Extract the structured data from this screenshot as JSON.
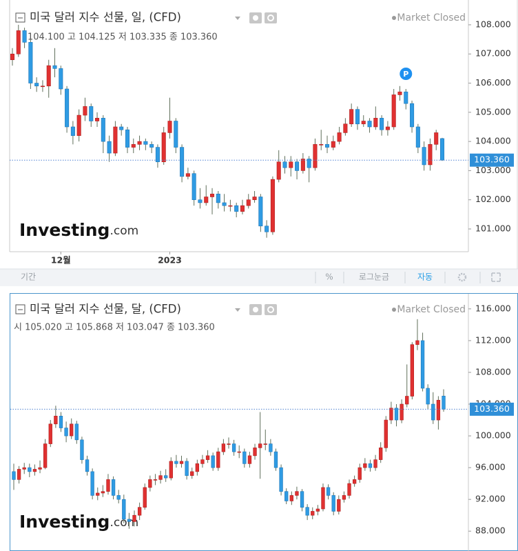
{
  "chart_data": [
    {
      "type": "candlestick",
      "title": "미국 달러 지수 선물, 일, (CFD)",
      "market_status": "Market Closed",
      "ohlc_text": "104.100 고 104.125 저 103.335 종 103.360",
      "marker_label": "P",
      "logo": "Investing",
      "logo_suffix": ".com",
      "up_color": "#e03131",
      "down_color": "#2f9be3",
      "wick_color": "#5f6e5a",
      "ylim": [
        100.22,
        108.85
      ],
      "yticks": [
        {
          "value": 101,
          "label": "101.000"
        },
        {
          "value": 102,
          "label": "102.000"
        },
        {
          "value": 103,
          "label": "103.000"
        },
        {
          "value": 104,
          "label": "104.000"
        },
        {
          "value": 105,
          "label": "105.000"
        },
        {
          "value": 106,
          "label": "106.000"
        },
        {
          "value": 107,
          "label": "107.000"
        },
        {
          "value": 108,
          "label": "108.000"
        }
      ],
      "xticks": [
        {
          "value": 8,
          "label": "12월"
        },
        {
          "value": 26,
          "label": "2023"
        }
      ],
      "last_price": {
        "value": 103.36,
        "label": "103.360"
      },
      "ohlc": [
        [
          106.8,
          107.2,
          106.6,
          107.0
        ],
        [
          107.0,
          108.0,
          106.9,
          107.8
        ],
        [
          107.8,
          107.9,
          107.2,
          107.4
        ],
        [
          107.4,
          107.5,
          105.8,
          106.0
        ],
        [
          106.0,
          106.2,
          105.7,
          105.9
        ],
        [
          105.9,
          106.1,
          105.7,
          105.9
        ],
        [
          105.9,
          106.8,
          105.5,
          106.6
        ],
        [
          106.6,
          107.2,
          106.2,
          106.5
        ],
        [
          106.5,
          106.6,
          105.6,
          105.8
        ],
        [
          105.8,
          105.9,
          104.3,
          104.5
        ],
        [
          104.5,
          104.7,
          103.9,
          104.2
        ],
        [
          104.2,
          105.1,
          104.0,
          104.9
        ],
        [
          104.9,
          105.5,
          104.7,
          105.2
        ],
        [
          105.2,
          105.3,
          104.5,
          104.7
        ],
        [
          104.7,
          105.0,
          104.5,
          104.8
        ],
        [
          104.8,
          104.9,
          103.6,
          104.0
        ],
        [
          104.0,
          104.2,
          103.3,
          103.6
        ],
        [
          103.6,
          104.7,
          103.5,
          104.5
        ],
        [
          104.5,
          104.6,
          104.2,
          104.4
        ],
        [
          104.4,
          104.5,
          103.6,
          103.8
        ],
        [
          103.8,
          104.1,
          103.6,
          103.9
        ],
        [
          103.9,
          104.2,
          103.7,
          104.0
        ],
        [
          104.0,
          104.1,
          103.7,
          103.9
        ],
        [
          103.9,
          104.0,
          103.6,
          103.8
        ],
        [
          103.8,
          103.9,
          103.1,
          103.3
        ],
        [
          103.3,
          104.5,
          103.2,
          104.3
        ],
        [
          104.3,
          105.5,
          104.1,
          104.7
        ],
        [
          104.7,
          104.8,
          103.6,
          103.8
        ],
        [
          103.8,
          103.9,
          102.6,
          102.8
        ],
        [
          102.8,
          103.1,
          102.7,
          102.9
        ],
        [
          102.9,
          103.0,
          101.8,
          102.0
        ],
        [
          102.0,
          102.4,
          101.7,
          101.9
        ],
        [
          101.9,
          102.5,
          101.8,
          102.1
        ],
        [
          102.1,
          102.4,
          101.5,
          102.2
        ],
        [
          102.2,
          102.3,
          101.7,
          101.9
        ],
        [
          101.9,
          102.2,
          101.6,
          101.8
        ],
        [
          101.8,
          102.0,
          101.6,
          101.8
        ],
        [
          101.8,
          101.9,
          101.4,
          101.6
        ],
        [
          101.6,
          102.0,
          101.5,
          101.8
        ],
        [
          101.8,
          102.2,
          101.7,
          102.0
        ],
        [
          102.0,
          102.3,
          101.9,
          102.1
        ],
        [
          102.1,
          102.2,
          100.9,
          101.1
        ],
        [
          101.1,
          101.3,
          100.7,
          100.9
        ],
        [
          100.9,
          102.8,
          100.8,
          102.7
        ],
        [
          102.7,
          103.7,
          102.6,
          103.3
        ],
        [
          103.3,
          103.5,
          102.9,
          103.1
        ],
        [
          103.1,
          103.5,
          102.8,
          103.3
        ],
        [
          103.3,
          103.4,
          102.7,
          103.0
        ],
        [
          103.0,
          103.6,
          102.9,
          103.4
        ],
        [
          103.4,
          103.5,
          102.6,
          103.1
        ],
        [
          103.1,
          104.1,
          103.0,
          103.9
        ],
        [
          103.9,
          104.4,
          103.7,
          103.9
        ],
        [
          103.9,
          104.2,
          103.6,
          103.8
        ],
        [
          103.8,
          104.2,
          103.7,
          104.0
        ],
        [
          104.0,
          104.5,
          103.9,
          104.3
        ],
        [
          104.3,
          104.8,
          104.2,
          104.6
        ],
        [
          104.6,
          105.3,
          104.5,
          105.1
        ],
        [
          105.1,
          105.2,
          104.4,
          104.6
        ],
        [
          104.6,
          104.9,
          104.5,
          104.7
        ],
        [
          104.7,
          104.8,
          104.3,
          104.5
        ],
        [
          104.5,
          105.2,
          104.4,
          104.8
        ],
        [
          104.8,
          104.9,
          104.2,
          104.4
        ],
        [
          104.4,
          104.7,
          104.2,
          104.5
        ],
        [
          104.5,
          105.8,
          104.4,
          105.6
        ],
        [
          105.6,
          105.9,
          105.4,
          105.7
        ],
        [
          105.7,
          105.8,
          105.1,
          105.3
        ],
        [
          105.3,
          105.4,
          104.3,
          104.5
        ],
        [
          104.5,
          104.6,
          103.6,
          103.8
        ],
        [
          103.8,
          104.0,
          103.0,
          103.2
        ],
        [
          103.2,
          104.1,
          103.0,
          103.9
        ],
        [
          103.9,
          104.4,
          103.7,
          104.3
        ],
        [
          104.1,
          104.125,
          103.335,
          103.36
        ]
      ]
    },
    {
      "type": "candlestick",
      "title": "미국 달러 지수 선물, 달, (CFD)",
      "market_status": "Market Closed",
      "ohlc_text": "시 105.020 고 105.868 저 103.047 종 103.360",
      "logo": "Investing",
      "logo_suffix": ".com",
      "up_color": "#e03131",
      "down_color": "#2f9be3",
      "wick_color": "#5f6e5a",
      "ylim": [
        85.5,
        117.9
      ],
      "yticks": [
        {
          "value": 88,
          "label": "88.000"
        },
        {
          "value": 92,
          "label": "92.000"
        },
        {
          "value": 96,
          "label": "96.000"
        },
        {
          "value": 100,
          "label": "100.000"
        },
        {
          "value": 104,
          "label": "104.000"
        },
        {
          "value": 108,
          "label": "108.000"
        },
        {
          "value": 112,
          "label": "112.000"
        },
        {
          "value": 116,
          "label": "116.000"
        }
      ],
      "last_price": {
        "value": 103.36,
        "label": "103.360"
      },
      "ohlc": [
        [
          95.5,
          96.5,
          93.2,
          94.5
        ],
        [
          94.5,
          96.2,
          94.0,
          95.8
        ],
        [
          95.8,
          96.6,
          95.2,
          96.0
        ],
        [
          96.0,
          96.5,
          94.8,
          95.5
        ],
        [
          95.5,
          96.4,
          95.0,
          95.8
        ],
        [
          95.8,
          96.9,
          95.3,
          96.0
        ],
        [
          96.0,
          99.6,
          95.8,
          99.0
        ],
        [
          99.0,
          102.0,
          98.6,
          101.5
        ],
        [
          101.5,
          103.8,
          101.0,
          102.5
        ],
        [
          102.5,
          103.0,
          100.5,
          101.0
        ],
        [
          101.0,
          101.8,
          99.2,
          100.0
        ],
        [
          100.0,
          102.2,
          99.6,
          101.5
        ],
        [
          101.5,
          101.9,
          99.0,
          99.5
        ],
        [
          99.5,
          99.9,
          96.5,
          97.0
        ],
        [
          97.0,
          97.5,
          95.0,
          95.5
        ],
        [
          95.5,
          95.9,
          92.0,
          92.5
        ],
        [
          92.5,
          93.5,
          91.9,
          92.8
        ],
        [
          92.8,
          93.8,
          92.3,
          93.0
        ],
        [
          93.0,
          95.2,
          92.6,
          94.5
        ],
        [
          94.5,
          94.9,
          92.0,
          92.5
        ],
        [
          92.5,
          93.2,
          91.5,
          92.0
        ],
        [
          92.0,
          92.6,
          89.0,
          89.5
        ],
        [
          89.5,
          90.3,
          88.3,
          89.2
        ],
        [
          89.2,
          90.6,
          88.6,
          90.0
        ],
        [
          90.0,
          91.6,
          89.4,
          91.0
        ],
        [
          91.0,
          94.0,
          90.7,
          93.5
        ],
        [
          93.5,
          95.0,
          93.0,
          94.5
        ],
        [
          94.5,
          95.2,
          93.8,
          94.5
        ],
        [
          94.5,
          95.6,
          94.0,
          95.0
        ],
        [
          95.0,
          95.8,
          94.2,
          94.7
        ],
        [
          94.7,
          97.3,
          94.4,
          96.8
        ],
        [
          96.8,
          97.6,
          96.0,
          96.5
        ],
        [
          96.5,
          97.5,
          96.0,
          96.8
        ],
        [
          96.8,
          97.2,
          94.5,
          95.0
        ],
        [
          95.0,
          96.0,
          94.6,
          95.5
        ],
        [
          95.5,
          97.0,
          95.0,
          96.5
        ],
        [
          96.5,
          97.6,
          96.0,
          97.0
        ],
        [
          97.0,
          98.2,
          96.6,
          97.5
        ],
        [
          97.5,
          97.9,
          95.6,
          96.0
        ],
        [
          96.0,
          98.5,
          95.6,
          98.0
        ],
        [
          98.0,
          99.6,
          97.6,
          99.0
        ],
        [
          99.0,
          99.8,
          98.4,
          99.0
        ],
        [
          99.0,
          99.5,
          97.5,
          98.0
        ],
        [
          98.0,
          98.8,
          97.2,
          98.0
        ],
        [
          98.0,
          98.4,
          96.0,
          96.5
        ],
        [
          96.5,
          98.0,
          96.0,
          97.5
        ],
        [
          97.5,
          99.0,
          97.0,
          98.5
        ],
        [
          98.5,
          103.0,
          94.6,
          99.0
        ],
        [
          99.0,
          100.8,
          98.2,
          99.0
        ],
        [
          99.0,
          99.6,
          97.5,
          98.0
        ],
        [
          98.0,
          98.4,
          95.6,
          96.0
        ],
        [
          96.0,
          96.4,
          92.5,
          93.0
        ],
        [
          93.0,
          93.4,
          91.4,
          91.8
        ],
        [
          91.8,
          93.0,
          91.3,
          92.5
        ],
        [
          92.5,
          93.6,
          92.0,
          93.0
        ],
        [
          93.0,
          93.3,
          90.5,
          91.0
        ],
        [
          91.0,
          91.4,
          89.4,
          90.0
        ],
        [
          90.0,
          91.0,
          89.5,
          90.5
        ],
        [
          90.5,
          91.3,
          90.0,
          90.8
        ],
        [
          90.8,
          94.0,
          90.5,
          93.5
        ],
        [
          93.5,
          93.9,
          92.0,
          92.5
        ],
        [
          92.5,
          92.9,
          90.0,
          90.5
        ],
        [
          90.5,
          92.5,
          90.1,
          92.0
        ],
        [
          92.0,
          93.0,
          91.6,
          92.5
        ],
        [
          92.5,
          94.5,
          92.1,
          94.0
        ],
        [
          94.0,
          95.0,
          93.6,
          94.5
        ],
        [
          94.5,
          96.5,
          94.1,
          96.0
        ],
        [
          96.0,
          97.2,
          95.6,
          96.5
        ],
        [
          96.5,
          97.0,
          95.5,
          96.0
        ],
        [
          96.0,
          97.6,
          95.6,
          97.0
        ],
        [
          97.0,
          99.2,
          96.6,
          98.5
        ],
        [
          98.5,
          102.5,
          98.0,
          102.0
        ],
        [
          102.0,
          104.3,
          101.5,
          103.5
        ],
        [
          103.5,
          104.0,
          101.2,
          102.0
        ],
        [
          102.0,
          104.6,
          101.6,
          104.0
        ],
        [
          104.0,
          109.0,
          103.6,
          105.0
        ],
        [
          105.0,
          111.8,
          104.6,
          111.5
        ],
        [
          111.5,
          114.7,
          110.8,
          112.0
        ],
        [
          112.0,
          113.0,
          105.6,
          106.0
        ],
        [
          106.0,
          106.5,
          103.4,
          104.0
        ],
        [
          104.0,
          105.5,
          101.5,
          102.0
        ],
        [
          102.0,
          105.0,
          100.8,
          104.5
        ],
        [
          105.02,
          105.868,
          103.047,
          103.36
        ]
      ]
    }
  ],
  "toolbar": [
    "기간",
    "%",
    "로그눈금",
    "자동"
  ]
}
